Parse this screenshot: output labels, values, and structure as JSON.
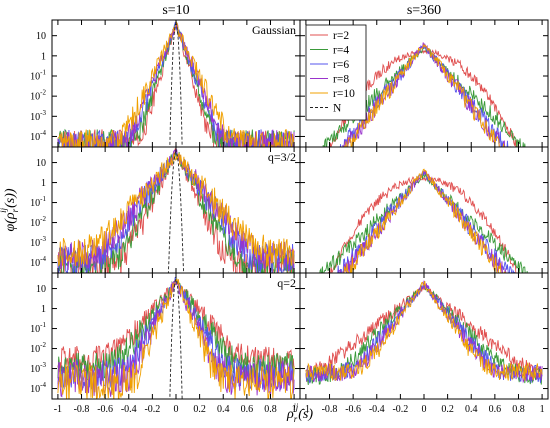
{
  "chart_data": {
    "type": "line",
    "layout": "3x2 grid of panels",
    "column_titles": [
      "s=10",
      "s=360"
    ],
    "panel_labels": [
      [
        "Gaussian",
        ""
      ],
      [
        "q=3/2",
        ""
      ],
      [
        "q=2",
        ""
      ]
    ],
    "xlabel": "ρ_r^{ij}(s)",
    "ylabel": "φ(ρ_r^{ij}(s))",
    "xlim": [
      -1.05,
      1.05
    ],
    "x_ticks": [
      -1,
      -0.8,
      -0.6,
      -0.4,
      -0.2,
      0,
      0.2,
      0.4,
      0.6,
      0.8,
      1
    ],
    "x_tick_labels": [
      "-1",
      "-0.8",
      "-0.6",
      "-0.4",
      "-0.2",
      "0",
      "0.2",
      "0.4",
      "0.6",
      "0.8",
      "1"
    ],
    "yscale": "log",
    "ylim": [
      3e-05,
      60
    ],
    "y_ticks": [
      0.0001,
      0.001,
      0.01,
      0.1,
      1,
      10
    ],
    "y_tick_labels": [
      [
        "10",
        "-4"
      ],
      [
        "10",
        "-3"
      ],
      [
        "10",
        "-2"
      ],
      [
        "10",
        "-1"
      ],
      [
        "1",
        ""
      ],
      [
        "10",
        ""
      ]
    ],
    "legend": {
      "location": "top-right panel, upper-left",
      "entries": [
        {
          "label": "r=2",
          "color": "#e05050",
          "dash": "solid"
        },
        {
          "label": "r=4",
          "color": "#3a9a3a",
          "dash": "solid"
        },
        {
          "label": "r=6",
          "color": "#5555ee",
          "dash": "solid"
        },
        {
          "label": "r=8",
          "color": "#9933cc",
          "dash": "solid"
        },
        {
          "label": "r=10",
          "color": "#f0a000",
          "dash": "solid"
        },
        {
          "label": "N",
          "color": "#222222",
          "dash": "dashed"
        }
      ]
    },
    "panels": [
      {
        "row": 0,
        "col": 0,
        "series": [
          {
            "name": "r=2",
            "shape": "laplace",
            "peak": 40,
            "scale": 0.022,
            "floor": 5e-05,
            "noise": 0.5
          },
          {
            "name": "r=4",
            "shape": "laplace",
            "peak": 38,
            "scale": 0.025,
            "floor": 5e-05,
            "noise": 0.5
          },
          {
            "name": "r=6",
            "shape": "laplace",
            "peak": 36,
            "scale": 0.028,
            "floor": 5e-05,
            "noise": 0.5
          },
          {
            "name": "r=8",
            "shape": "laplace",
            "peak": 34,
            "scale": 0.03,
            "floor": 5e-05,
            "noise": 0.5
          },
          {
            "name": "r=10",
            "shape": "laplace",
            "peak": 32,
            "scale": 0.034,
            "floor": 5e-05,
            "noise": 0.5
          },
          {
            "name": "N",
            "shape": "gauss",
            "peak": 40,
            "scale": 0.01
          }
        ]
      },
      {
        "row": 0,
        "col": 1,
        "series": [
          {
            "name": "r=2",
            "shape": "gauss",
            "peak": 1.6,
            "scale": 0.17,
            "noise": 0.2
          },
          {
            "name": "r=4",
            "shape": "laplace",
            "peak": 2.5,
            "scale": 0.075,
            "noise": 0.3
          },
          {
            "name": "r=6",
            "shape": "laplace",
            "peak": 3.2,
            "scale": 0.06,
            "noise": 0.35
          },
          {
            "name": "r=8",
            "shape": "laplace",
            "peak": 3.6,
            "scale": 0.057,
            "noise": 0.35
          },
          {
            "name": "r=10",
            "shape": "laplace",
            "peak": 4.0,
            "scale": 0.055,
            "noise": 0.35
          }
        ]
      },
      {
        "row": 1,
        "col": 0,
        "series": [
          {
            "name": "r=2",
            "shape": "laplace",
            "peak": 35,
            "scale": 0.035,
            "floor": 7e-05,
            "noise": 0.6
          },
          {
            "name": "r=4",
            "shape": "laplace",
            "peak": 33,
            "scale": 0.04,
            "floor": 0.0001,
            "noise": 0.6
          },
          {
            "name": "r=6",
            "shape": "laplace",
            "peak": 31,
            "scale": 0.05,
            "floor": 0.00015,
            "noise": 0.6
          },
          {
            "name": "r=8",
            "shape": "laplace",
            "peak": 29,
            "scale": 0.055,
            "floor": 0.0002,
            "noise": 0.6
          },
          {
            "name": "r=10",
            "shape": "laplace",
            "peak": 27,
            "scale": 0.06,
            "floor": 0.0003,
            "noise": 0.6
          },
          {
            "name": "N",
            "shape": "gauss",
            "peak": 35,
            "scale": 0.012
          }
        ]
      },
      {
        "row": 1,
        "col": 1,
        "series": [
          {
            "name": "r=2",
            "shape": "gauss",
            "peak": 1.6,
            "scale": 0.17,
            "noise": 0.2
          },
          {
            "name": "r=4",
            "shape": "laplace",
            "peak": 2.5,
            "scale": 0.075,
            "noise": 0.3
          },
          {
            "name": "r=6",
            "shape": "laplace",
            "peak": 3.2,
            "scale": 0.062,
            "noise": 0.35
          },
          {
            "name": "r=8",
            "shape": "laplace",
            "peak": 3.6,
            "scale": 0.058,
            "noise": 0.35
          },
          {
            "name": "r=10",
            "shape": "laplace",
            "peak": 4.0,
            "scale": 0.056,
            "noise": 0.35
          }
        ]
      },
      {
        "row": 2,
        "col": 0,
        "series": [
          {
            "name": "r=2",
            "shape": "laplace",
            "peak": 20,
            "scale": 0.06,
            "floor": 0.003,
            "noise": 0.5
          },
          {
            "name": "r=4",
            "shape": "laplace",
            "peak": 22,
            "scale": 0.05,
            "floor": 0.001,
            "noise": 0.6
          },
          {
            "name": "r=6",
            "shape": "laplace",
            "peak": 24,
            "scale": 0.04,
            "floor": 0.0005,
            "noise": 0.6
          },
          {
            "name": "r=8",
            "shape": "laplace",
            "peak": 26,
            "scale": 0.035,
            "floor": 0.0003,
            "noise": 0.7
          },
          {
            "name": "r=10",
            "shape": "laplace",
            "peak": 28,
            "scale": 0.03,
            "floor": 0.0002,
            "noise": 0.7
          },
          {
            "name": "N",
            "shape": "gauss",
            "peak": 30,
            "scale": 0.01
          }
        ]
      },
      {
        "row": 2,
        "col": 1,
        "series": [
          {
            "name": "r=2",
            "shape": "laplace",
            "peak": 12,
            "scale": 0.09,
            "floor": 0.0003,
            "noise": 0.3
          },
          {
            "name": "r=4",
            "shape": "laplace",
            "peak": 14,
            "scale": 0.07,
            "floor": 0.0004,
            "noise": 0.35
          },
          {
            "name": "r=6",
            "shape": "laplace",
            "peak": 16,
            "scale": 0.06,
            "floor": 0.0005,
            "noise": 0.35
          },
          {
            "name": "r=8",
            "shape": "laplace",
            "peak": 18,
            "scale": 0.055,
            "floor": 0.0006,
            "noise": 0.35
          },
          {
            "name": "r=10",
            "shape": "laplace",
            "peak": 20,
            "scale": 0.05,
            "floor": 0.0007,
            "noise": 0.35
          }
        ]
      }
    ]
  }
}
